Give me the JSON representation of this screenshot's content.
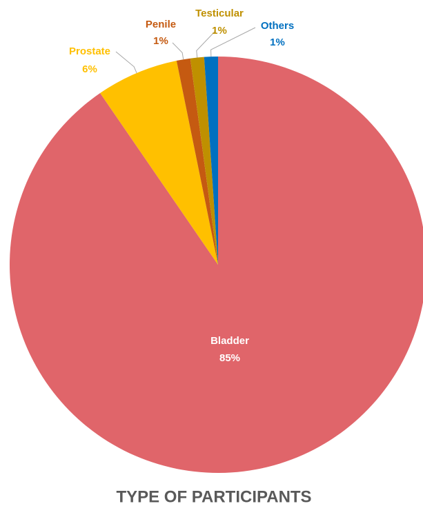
{
  "chart_data": {
    "type": "pie",
    "title": "TYPE OF PARTICIPANTS",
    "categories": [
      "Bladder",
      "Prostate",
      "Penile",
      "Testicular",
      "Others"
    ],
    "values": [
      85,
      6,
      1,
      1,
      1
    ],
    "value_labels": [
      "85%",
      "6%",
      "1%",
      "1%",
      "1%"
    ],
    "colors": [
      "#e0656a",
      "#ffc000",
      "#c55a11",
      "#bf9000",
      "#0070c0"
    ]
  }
}
